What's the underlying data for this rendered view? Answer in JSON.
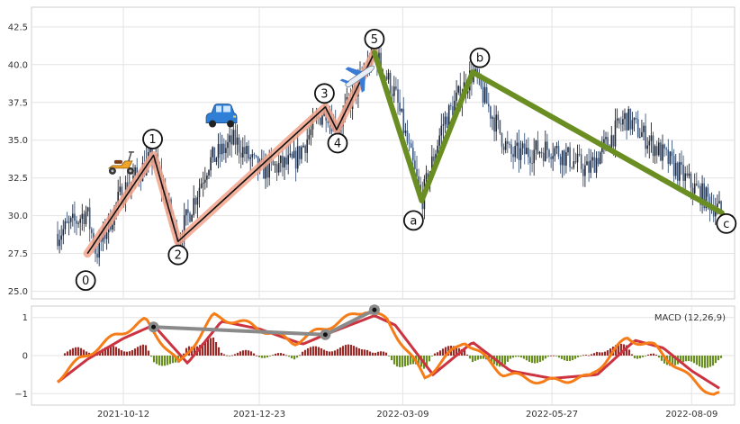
{
  "chart_data": {
    "type": "candlestick_with_macd",
    "x_ticks": [
      "2021-10-12",
      "2021-12-23",
      "2022-03-09",
      "2022-05-27",
      "2022-08-09"
    ],
    "price_panel": {
      "ylim": [
        24.5,
        43.8
      ],
      "y_ticks": [
        "25.0",
        "27.5",
        "30.0",
        "32.5",
        "35.0",
        "37.5",
        "40.0",
        "42.5"
      ],
      "grid": true,
      "colors": {
        "candle_up": "#1e2738",
        "candle_down": "#3f5a80",
        "impulse_line": "#111111",
        "impulse_halo": "#f2a48c",
        "correction_line": "#6b8e23"
      },
      "impulse_waves": [
        {
          "label": "0",
          "date": "2021-09-23",
          "price": 27.5
        },
        {
          "label": "1",
          "date": "2021-10-28",
          "price": 34.0
        },
        {
          "label": "2",
          "date": "2021-11-10",
          "price": 28.3
        },
        {
          "label": "3",
          "date": "2022-01-27",
          "price": 37.2
        },
        {
          "label": "4",
          "date": "2022-02-02",
          "price": 35.7
        },
        {
          "label": "5",
          "date": "2022-02-22",
          "price": 40.8
        }
      ],
      "corrective_waves": [
        {
          "label": "5",
          "date": "2022-02-22",
          "price": 40.8
        },
        {
          "label": "a",
          "date": "2022-03-19",
          "price": 31.0
        },
        {
          "label": "b",
          "date": "2022-04-15",
          "price": 39.5
        },
        {
          "label": "c",
          "date": "2022-08-25",
          "price": 30.2
        }
      ],
      "icons": [
        {
          "name": "scooter-icon",
          "date": "2021-10-11",
          "price": 33.5
        },
        {
          "name": "car-icon",
          "date": "2021-12-03",
          "price": 36.5
        },
        {
          "name": "airplane-icon",
          "date": "2022-02-14",
          "price": 39.2
        }
      ]
    },
    "macd_panel": {
      "legend": "MACD (12,26,9)",
      "ylim": [
        -1.3,
        1.3
      ],
      "y_ticks": [
        "−1",
        "0",
        "1"
      ],
      "colors": {
        "macd": "#f57c16",
        "signal": "#cc3340",
        "hist_pos": "#9a2a28",
        "hist_neg": "#6b8e23",
        "trend_line": "#8a8a8a"
      },
      "trend_points": [
        {
          "date": "2021-10-28",
          "value": 0.75
        },
        {
          "date": "2022-01-27",
          "value": 0.55
        },
        {
          "date": "2022-02-22",
          "value": 1.2
        }
      ]
    }
  }
}
